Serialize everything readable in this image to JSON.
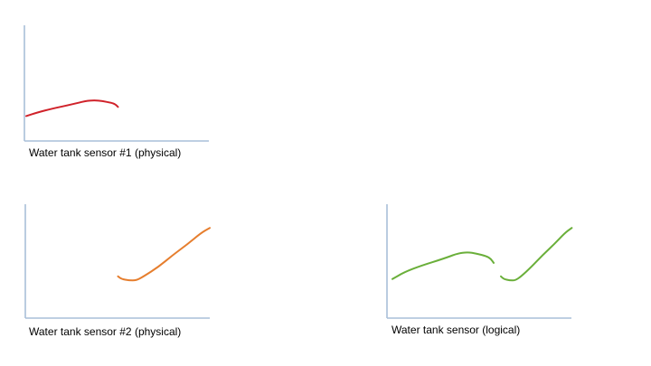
{
  "panels": [
    {
      "caption": "Water tank sensor #1 (physical)",
      "color": "#d0222a",
      "segments": [
        [
          [
            0.0,
            0.3
          ],
          [
            0.08,
            0.34
          ],
          [
            0.2,
            0.39
          ],
          [
            0.35,
            0.44
          ],
          [
            0.45,
            0.48
          ],
          [
            0.52,
            0.49
          ],
          [
            0.58,
            0.48
          ],
          [
            0.65,
            0.46
          ],
          [
            0.68,
            0.44
          ],
          [
            0.7,
            0.41
          ]
        ]
      ]
    },
    {
      "caption": "Water tank sensor #2 (physical)",
      "color": "#e67e2e",
      "segments": [
        [
          [
            0.5,
            0.31
          ],
          [
            0.52,
            0.29
          ],
          [
            0.56,
            0.28
          ],
          [
            0.6,
            0.28
          ],
          [
            0.64,
            0.31
          ],
          [
            0.72,
            0.38
          ],
          [
            0.8,
            0.47
          ],
          [
            0.88,
            0.55
          ],
          [
            0.95,
            0.63
          ],
          [
            1.0,
            0.67
          ]
        ]
      ]
    },
    {
      "caption": "Water tank sensor (logical)",
      "color": "#6aaf3a",
      "segments": [
        [
          [
            0.0,
            0.29
          ],
          [
            0.08,
            0.34
          ],
          [
            0.2,
            0.39
          ],
          [
            0.35,
            0.44
          ],
          [
            0.45,
            0.48
          ],
          [
            0.52,
            0.49
          ],
          [
            0.58,
            0.48
          ],
          [
            0.65,
            0.46
          ],
          [
            0.68,
            0.44
          ],
          [
            0.7,
            0.41
          ]
        ],
        [
          [
            0.75,
            0.31
          ],
          [
            0.77,
            0.29
          ],
          [
            0.81,
            0.28
          ],
          [
            0.85,
            0.28
          ],
          [
            0.89,
            0.31
          ],
          [
            0.96,
            0.38
          ],
          [
            1.04,
            0.47
          ],
          [
            1.12,
            0.55
          ],
          [
            1.19,
            0.63
          ],
          [
            1.24,
            0.67
          ]
        ]
      ]
    }
  ]
}
